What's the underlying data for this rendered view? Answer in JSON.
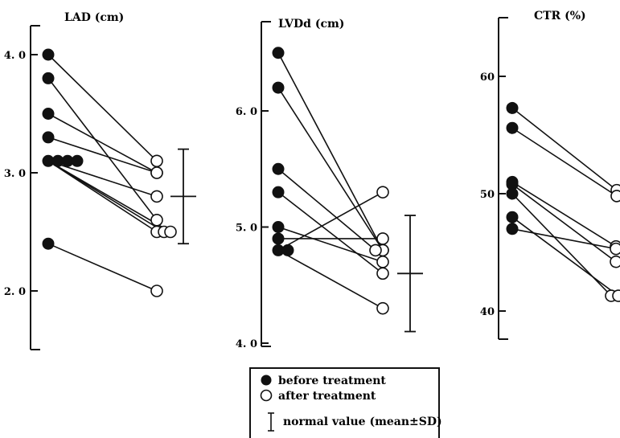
{
  "chart_data": [
    {
      "type": "scatter",
      "title": "LAD (cm)",
      "yticks": [
        "2. 0",
        "3. 0",
        "4. 0"
      ],
      "ytick_values": [
        2.0,
        3.0,
        4.0
      ],
      "ylim": [
        1.5,
        4.25
      ],
      "pairs": [
        {
          "before": 4.0,
          "after": 3.1
        },
        {
          "before": 3.8,
          "after": 2.6
        },
        {
          "before": 3.5,
          "after": 3.0
        },
        {
          "before": 3.3,
          "after": 3.0
        },
        {
          "before": 3.1,
          "after": 2.8
        },
        {
          "before": 3.1,
          "after": 2.5
        },
        {
          "before": 3.1,
          "after": 2.5
        },
        {
          "before": 3.1,
          "after": 2.5
        },
        {
          "before": 2.4,
          "after": 2.0
        }
      ],
      "normal": {
        "mean": 2.8,
        "sd": 0.4
      }
    },
    {
      "type": "scatter",
      "title": "LVDd (cm)",
      "yticks": [
        "4. 0",
        "5. 0",
        "6. 0"
      ],
      "ytick_values": [
        4.0,
        5.0,
        6.0
      ],
      "ylim": [
        4.0,
        6.7
      ],
      "pairs": [
        {
          "before": 6.5,
          "after": 4.8
        },
        {
          "before": 6.2,
          "after": 4.8
        },
        {
          "before": 5.5,
          "after": 4.8
        },
        {
          "before": 5.3,
          "after": 4.6
        },
        {
          "before": 5.0,
          "after": 4.7
        },
        {
          "before": 4.9,
          "after": 4.9
        },
        {
          "before": 4.8,
          "after": 5.3
        },
        {
          "before": 4.8,
          "after": 4.3
        }
      ],
      "normal": {
        "mean": 4.6,
        "sd": 0.5
      }
    },
    {
      "type": "scatter",
      "title": "CTR (%)",
      "yticks": [
        "40",
        "50",
        "60"
      ],
      "ytick_values": [
        40,
        50,
        60
      ],
      "ylim": [
        38,
        65
      ],
      "pairs": [
        {
          "before": 57.3,
          "after": 50.3
        },
        {
          "before": 55.6,
          "after": 49.8
        },
        {
          "before": 51.0,
          "after": 45.5
        },
        {
          "before": 50.8,
          "after": 44.2
        },
        {
          "before": 50.0,
          "after": 41.3
        },
        {
          "before": 48.0,
          "after": 41.3
        },
        {
          "before": 47.0,
          "after": 45.3
        }
      ]
    }
  ],
  "legend": {
    "before": "before treatment",
    "after": "after treatment",
    "normal": "normal value (mean±SD)"
  },
  "colors": {
    "ink": "#111111",
    "paper": "#ffffff"
  }
}
